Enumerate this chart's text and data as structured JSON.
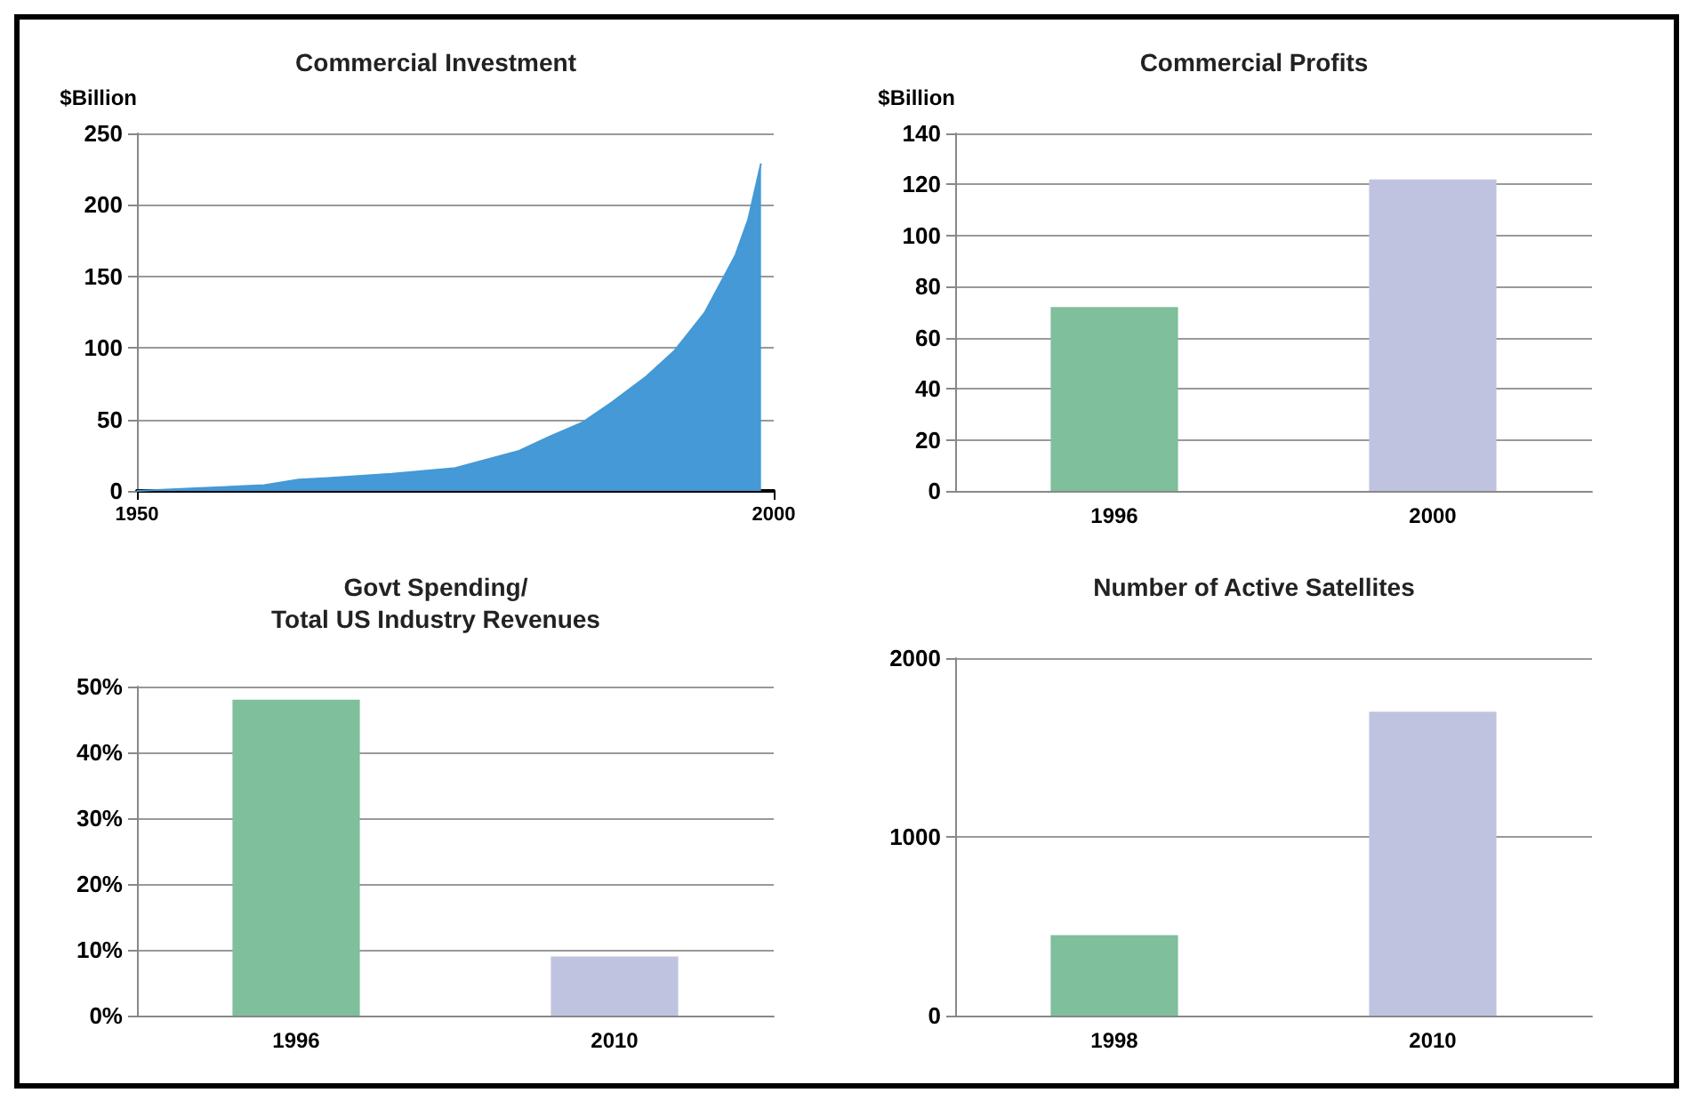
{
  "chart_data": [
    {
      "type": "area",
      "title": "Commercial Investment",
      "ylabel": "$Billion",
      "x": [
        1950,
        1955,
        1960,
        1962.7,
        1965,
        1970,
        1975,
        1980,
        1982.4,
        1985,
        1987.3,
        1990,
        1992.2,
        1994.6,
        1997,
        1998,
        1999
      ],
      "series": [
        {
          "color": "#4499d6",
          "values": [
            0,
            2,
            4,
            8,
            9,
            12,
            16,
            28,
            38,
            48,
            62,
            80,
            98,
            125,
            165,
            190,
            229
          ]
        }
      ],
      "xlim": [
        1950,
        2000
      ],
      "xticks": [
        1950,
        2000
      ],
      "ylim": [
        0,
        250
      ],
      "yticks": [
        0,
        50,
        100,
        150,
        200,
        250
      ],
      "grid": "y"
    },
    {
      "type": "bar",
      "title": "Commercial Profits",
      "ylabel": "$Billion",
      "categories": [
        "1996",
        "2000"
      ],
      "values": [
        72,
        122
      ],
      "colors": [
        "#7fbf9b",
        "#c0c3e0"
      ],
      "ylim": [
        0,
        140
      ],
      "yticks": [
        0,
        20,
        40,
        60,
        80,
        100,
        120,
        140
      ],
      "grid": "y"
    },
    {
      "type": "bar",
      "title": "Govt Spending/\nTotal US Industry Revenues",
      "categories": [
        "1996",
        "2010"
      ],
      "values": [
        48,
        9
      ],
      "colors": [
        "#7fbf9b",
        "#c0c3e0"
      ],
      "ylim": [
        0,
        50
      ],
      "yticks": [
        {
          "value": 0,
          "label": "0%"
        },
        {
          "value": 10,
          "label": "10%"
        },
        {
          "value": 20,
          "label": "20%"
        },
        {
          "value": 30,
          "label": "30%"
        },
        {
          "value": 40,
          "label": "40%"
        },
        {
          "value": 50,
          "label": "50%"
        }
      ],
      "grid": "y"
    },
    {
      "type": "bar",
      "title": "Number of Active Satellites",
      "categories": [
        "1998",
        "2010"
      ],
      "values": [
        450,
        1700
      ],
      "colors": [
        "#7fbf9b",
        "#c0c3e0"
      ],
      "ylim": [
        0,
        2000
      ],
      "yticks": [
        0,
        1000,
        2000
      ],
      "grid": "y"
    }
  ]
}
